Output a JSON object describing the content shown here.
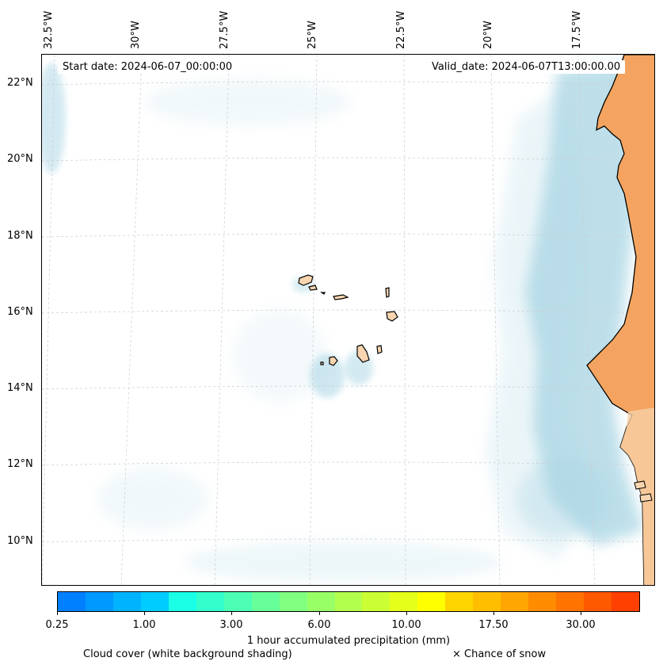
{
  "map": {
    "start_date": "Start date: 2024-06-07_00:00:00",
    "valid_date": "Valid_date: 2024-06-07T13:00:00.00",
    "lon_labels": [
      "32.5°W",
      "30°W",
      "27.5°W",
      "25°W",
      "22.5°W",
      "20°W",
      "17.5°W"
    ],
    "lat_labels": [
      "22°N",
      "20°N",
      "18°N",
      "16°N",
      "14°N",
      "12°N",
      "10°N"
    ],
    "colors": {
      "land": "#f4a460",
      "land_light": "#f8cfa6",
      "island": "#f8d5b0",
      "cloud": "#a9d5e4",
      "coast": "#000000",
      "grid": "#cccccc"
    }
  },
  "colorbar": {
    "title": "1 hour accumulated precipitation (mm)",
    "tick_labels": [
      "0.25",
      "1.00",
      "3.00",
      "6.00",
      "10.00",
      "17.50",
      "30.00"
    ],
    "colors": [
      "#0080ff",
      "#0099ff",
      "#00b3ff",
      "#00ccff",
      "#1affe6",
      "#33ffcc",
      "#4dffb3",
      "#66ff99",
      "#80ff80",
      "#99ff66",
      "#b3ff4d",
      "#ccff33",
      "#e6ff1a",
      "#ffff00",
      "#ffd500",
      "#ffbf00",
      "#ffa600",
      "#ff8c00",
      "#ff7300",
      "#ff5900",
      "#ff4000"
    ]
  },
  "legend": {
    "cloud_cover": "Cloud cover (white background shading)",
    "snow": "× Chance of snow"
  }
}
